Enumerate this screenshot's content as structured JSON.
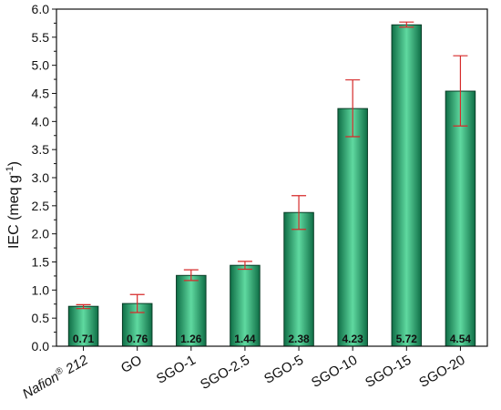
{
  "chart_data": {
    "type": "bar",
    "title": "",
    "xlabel": "",
    "ylabel": "IEC (meq g",
    "ylabel_sup": "-1",
    "ylabel_close": ")",
    "ylim": [
      0.0,
      6.0
    ],
    "yticks": [
      "0.0",
      "0.5",
      "1.0",
      "1.5",
      "2.0",
      "2.5",
      "3.0",
      "3.5",
      "4.0",
      "4.5",
      "5.0",
      "5.5",
      "6.0"
    ],
    "categories": [
      "Nafion® 212",
      "GO",
      "SGO-1",
      "SGO-2.5",
      "SGO-5",
      "SGO-10",
      "SGO-15",
      "SGO-20"
    ],
    "values": [
      0.71,
      0.76,
      1.26,
      1.44,
      2.38,
      4.23,
      5.72,
      4.54
    ],
    "value_labels": [
      "0.71",
      "0.76",
      "1.26",
      "1.44",
      "2.38",
      "4.23",
      "5.72",
      "4.54"
    ],
    "error_low": [
      0.67,
      0.6,
      1.17,
      1.37,
      2.08,
      3.73,
      5.68,
      3.92
    ],
    "error_high": [
      0.74,
      0.92,
      1.36,
      1.51,
      2.68,
      4.74,
      5.77,
      5.17
    ],
    "colors": {
      "bar_dark": "#0f6e46",
      "bar_light": "#5fd9a0",
      "error": "#d62a2a",
      "axis": "#111111"
    },
    "grid": false,
    "legend": "none"
  }
}
